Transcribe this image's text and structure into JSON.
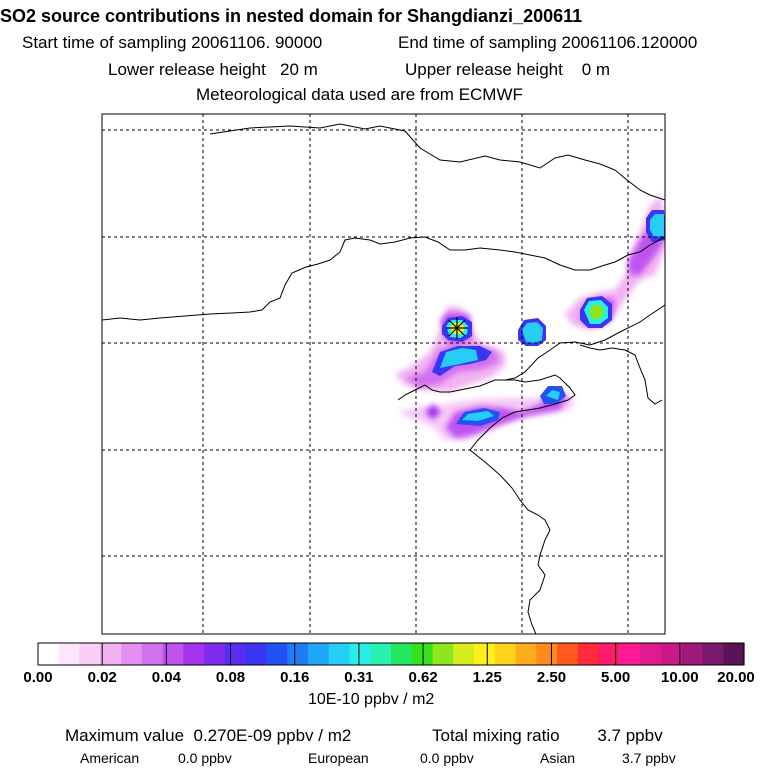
{
  "header": {
    "title": "SO2 source contributions in nested domain for Shangdianzi_200611",
    "start_label": "Start time of sampling",
    "start_value": "20061106. 90000",
    "end_label": "End time of sampling",
    "end_value": "20061106.120000",
    "lower_label": "Lower release height",
    "lower_value": "20 m",
    "upper_label": "Upper release height",
    "upper_value": "0 m",
    "met_line": "Meteorological data used are from ECMWF"
  },
  "colorbar": {
    "colors": [
      "#ffffff",
      "#fde6fb",
      "#f8cdf6",
      "#f2b2f1",
      "#e391f0",
      "#d272ef",
      "#c052f0",
      "#a533ee",
      "#7f2bf0",
      "#5a2cf2",
      "#3a35f2",
      "#2451f4",
      "#1d7cf6",
      "#20a6f6",
      "#26cdf4",
      "#28eee8",
      "#2af0b0",
      "#22e860",
      "#32e21a",
      "#8ee61c",
      "#d6ee1c",
      "#fff01c",
      "#ffd21c",
      "#ffad1c",
      "#ff8a1c",
      "#ff5a1c",
      "#ff2a3a",
      "#ff1a6a",
      "#ff1a95",
      "#e21a8f",
      "#c81a88",
      "#a01a7c",
      "#7a1a6e",
      "#5a1258"
    ],
    "tick_labels": [
      "0.00",
      "0.02",
      "0.04",
      "0.08",
      "0.16",
      "0.31",
      "0.62",
      "1.25",
      "2.50",
      "5.00",
      "10.00",
      "20.00"
    ],
    "units": "10E-10 ppbv / m2"
  },
  "stats": {
    "max_label": "Maximum value",
    "max_value": "0.270E-09 ppbv / m2",
    "total_label": "Total mixing ratio",
    "total_value": "3.7 ppbv",
    "regions": [
      {
        "name": "American",
        "value": "0.0 ppbv"
      },
      {
        "name": "European",
        "value": "0.0 ppbv"
      },
      {
        "name": "Asian",
        "value": "3.7 ppbv"
      }
    ]
  },
  "map": {
    "station_marker": "asterisk-icon"
  }
}
